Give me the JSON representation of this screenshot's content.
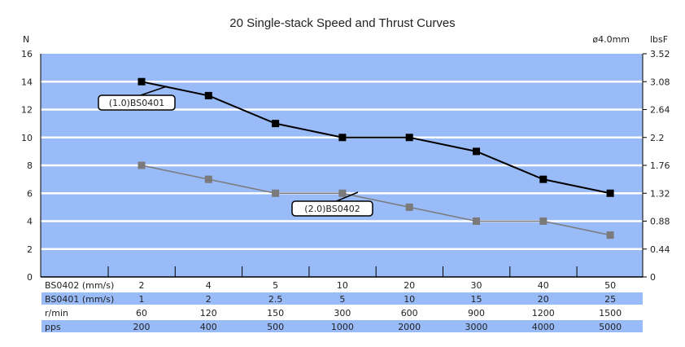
{
  "chart_data": {
    "type": "line",
    "title": "20 Single-stack Speed and Thrust Curves",
    "ylabel": "N",
    "ylabel_right": "lbsF",
    "note": "ø4.0mm",
    "ylim": [
      0,
      16
    ],
    "yticks": [
      "0",
      "2",
      "4",
      "6",
      "8",
      "10",
      "12",
      "14",
      "16"
    ],
    "yticks_right": [
      "0",
      "0.44",
      "0.88",
      "1.32",
      "1.76",
      "2.2",
      "2.64",
      "3.08",
      "3.52"
    ],
    "grid": true,
    "series": [
      {
        "name": "(1.0)BS0401",
        "color": "#000000",
        "values": [
          14,
          13,
          11,
          10,
          10,
          9,
          7,
          6
        ]
      },
      {
        "name": "(2.0)BS0402",
        "color": "#7a7a7a",
        "values": [
          8,
          7,
          6,
          6,
          5,
          4,
          4,
          3
        ]
      }
    ],
    "table": [
      {
        "label": "BS0402 (mm/s)",
        "values": [
          "2",
          "4",
          "5",
          "10",
          "20",
          "30",
          "40",
          "50"
        ]
      },
      {
        "label": "BS0401 (mm/s)",
        "values": [
          "1",
          "2",
          "2.5",
          "5",
          "10",
          "15",
          "20",
          "25"
        ]
      },
      {
        "label": "r/min",
        "values": [
          "60",
          "120",
          "150",
          "300",
          "600",
          "900",
          "1200",
          "1500"
        ]
      },
      {
        "label": "pps",
        "values": [
          "200",
          "400",
          "500",
          "1000",
          "2000",
          "3000",
          "4000",
          "5000"
        ]
      }
    ],
    "colors": {
      "plot_bg": "#99bbf7",
      "row_band": "#99bbf7"
    }
  }
}
